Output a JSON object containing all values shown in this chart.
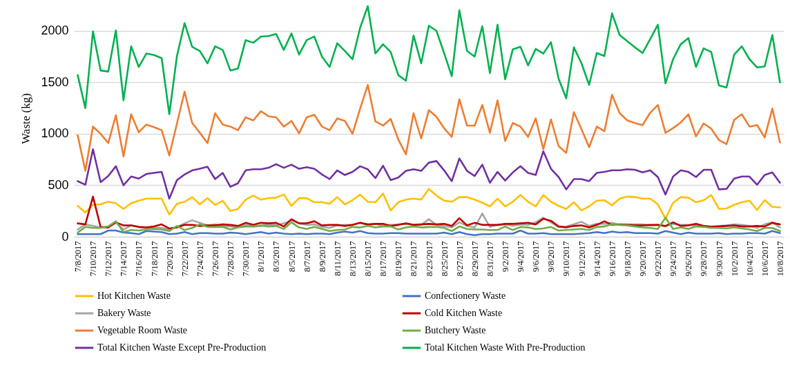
{
  "chart_data": {
    "type": "line",
    "ylabel": "Waste (kg)",
    "ylim": [
      0,
      2300
    ],
    "yticks": [
      0,
      500,
      1000,
      1500,
      2000
    ],
    "grid": "y",
    "legend": "bottom",
    "categories": [
      "7/8/2017",
      null,
      "7/10/2017",
      null,
      "7/12/2017",
      null,
      "7/14/2017",
      null,
      "7/16/2017",
      null,
      "7/18/2017",
      null,
      "7/20/2017",
      null,
      "7/22/2017",
      null,
      "7/24/2017",
      null,
      "7/26/2017",
      null,
      "7/28/2017",
      null,
      "7/30/2017",
      null,
      "8/1/2017",
      null,
      "8/3/2017",
      null,
      "8/5/2017",
      null,
      "8/7/2017",
      null,
      "8/9/2017",
      null,
      "8/11/2017",
      null,
      "8/13/2017",
      null,
      "8/15/2017",
      null,
      "8/17/2017",
      null,
      "8/19/2017",
      null,
      "8/21/2017",
      null,
      "8/23/2017",
      null,
      "8/25/2017",
      null,
      "8/27/2017",
      null,
      "8/29/2017",
      null,
      "8/31/2017",
      null,
      "9/2/2017",
      null,
      "9/4/2017",
      null,
      "9/6/2017",
      null,
      "9/8/2017",
      null,
      "9/10/2017",
      null,
      "9/12/2017",
      null,
      "9/14/2017",
      null,
      "9/16/2017",
      null,
      "9/18/2017",
      null,
      "9/20/2017",
      null,
      "9/22/2017",
      null,
      "9/24/2017",
      null,
      "9/26/2017",
      null,
      "9/28/2017",
      null,
      "9/30/2017",
      null,
      "10/2/2017",
      null,
      "10/4/2017",
      null,
      "10/6/2017",
      null,
      "10/8/2017"
    ],
    "series": [
      {
        "name": "Hot Kitchen Waste",
        "color": "#ffc000",
        "values": [
          300,
          235,
          310,
          315,
          340,
          325,
          270,
          325,
          350,
          370,
          370,
          370,
          215,
          320,
          340,
          385,
          315,
          375,
          310,
          350,
          250,
          270,
          360,
          400,
          360,
          375,
          380,
          410,
          300,
          375,
          375,
          335,
          335,
          320,
          385,
          315,
          355,
          410,
          340,
          335,
          420,
          255,
          335,
          360,
          370,
          360,
          465,
          400,
          350,
          340,
          385,
          385,
          360,
          330,
          295,
          370,
          295,
          340,
          405,
          340,
          295,
          405,
          340,
          300,
          270,
          335,
          255,
          295,
          350,
          355,
          305,
          370,
          390,
          385,
          370,
          370,
          315,
          175,
          330,
          385,
          380,
          335,
          355,
          405,
          270,
          275,
          310,
          335,
          350,
          260,
          355,
          290,
          285
        ]
      },
      {
        "name": "Confectionery Waste",
        "color": "#4472c4",
        "values": [
          25,
          25,
          25,
          25,
          60,
          60,
          40,
          35,
          25,
          55,
          50,
          45,
          25,
          30,
          45,
          25,
          35,
          35,
          30,
          30,
          40,
          35,
          25,
          35,
          45,
          30,
          40,
          30,
          25,
          30,
          25,
          30,
          30,
          25,
          40,
          50,
          40,
          55,
          35,
          30,
          30,
          35,
          35,
          30,
          30,
          30,
          30,
          30,
          40,
          25,
          45,
          25,
          15,
          25,
          25,
          30,
          30,
          30,
          60,
          30,
          30,
          35,
          25,
          25,
          25,
          25,
          30,
          35,
          45,
          35,
          50,
          40,
          45,
          35,
          35,
          35,
          30,
          55,
          40,
          25,
          40,
          30,
          30,
          30,
          35,
          25,
          30,
          30,
          35,
          35,
          30,
          55,
          35
        ]
      },
      {
        "name": "Bakery Waste",
        "color": "#a5a5a5",
        "values": [
          70,
          120,
          105,
          90,
          100,
          140,
          70,
          110,
          95,
          90,
          90,
          85,
          70,
          95,
          130,
          160,
          135,
          110,
          120,
          105,
          100,
          95,
          115,
          100,
          105,
          120,
          110,
          130,
          160,
          130,
          115,
          120,
          95,
          85,
          110,
          115,
          115,
          135,
          115,
          125,
          105,
          115,
          120,
          125,
          115,
          115,
          170,
          115,
          105,
          90,
          140,
          105,
          90,
          225,
          95,
          115,
          120,
          105,
          120,
          115,
          140,
          185,
          140,
          95,
          100,
          120,
          145,
          105,
          125,
          125,
          135,
          115,
          120,
          120,
          120,
          110,
          115,
          100,
          125,
          115,
          115,
          110,
          105,
          100,
          105,
          110,
          120,
          115,
          105,
          85,
          120,
          140,
          90
        ]
      },
      {
        "name": "Cold Kitchen Waste",
        "color": "#c00000",
        "values": [
          130,
          120,
          390,
          95,
          90,
          140,
          110,
          110,
          95,
          90,
          100,
          120,
          80,
          90,
          115,
          115,
          105,
          110,
          110,
          120,
          115,
          105,
          135,
          115,
          135,
          130,
          135,
          100,
          170,
          130,
          130,
          150,
          110,
          115,
          115,
          105,
          115,
          135,
          120,
          125,
          125,
          105,
          115,
          130,
          115,
          120,
          125,
          120,
          125,
          105,
          180,
          110,
          135,
          115,
          115,
          115,
          125,
          125,
          130,
          135,
          120,
          175,
          155,
          100,
          90,
          105,
          110,
          90,
          115,
          150,
          115,
          120,
          115,
          110,
          110,
          115,
          115,
          105,
          140,
          105,
          110,
          125,
          105,
          95,
          100,
          105,
          110,
          100,
          100,
          105,
          100,
          135,
          120
        ]
      },
      {
        "name": "Vegetable Room Waste",
        "color": "#ed7d31",
        "values": [
          985,
          640,
          1070,
          1000,
          910,
          1180,
          780,
          1190,
          1015,
          1090,
          1065,
          1035,
          790,
          1100,
          1410,
          1105,
          1010,
          910,
          1200,
          1090,
          1070,
          1035,
          1160,
          1130,
          1220,
          1170,
          1160,
          1070,
          1125,
          1005,
          1160,
          1185,
          1070,
          1035,
          1150,
          1125,
          1000,
          1245,
          1475,
          1120,
          1080,
          1145,
          945,
          800,
          1200,
          955,
          1230,
          1165,
          1055,
          970,
          1335,
          1080,
          1080,
          1280,
          1010,
          1325,
          930,
          1105,
          1070,
          970,
          1150,
          850,
          1140,
          880,
          815,
          1210,
          1045,
          870,
          1070,
          1025,
          1380,
          1200,
          1130,
          1105,
          1085,
          1205,
          1280,
          1010,
          1055,
          1110,
          1190,
          975,
          1100,
          1050,
          940,
          900,
          1135,
          1190,
          1070,
          1085,
          965,
          1245,
          915
        ]
      },
      {
        "name": "Butchery Waste",
        "color": "#70ad47",
        "values": [
          40,
          95,
          85,
          85,
          100,
          150,
          45,
          65,
          60,
          70,
          75,
          70,
          55,
          105,
          65,
          85,
          120,
          95,
          95,
          95,
          70,
          90,
          100,
          100,
          110,
          100,
          105,
          75,
          140,
          90,
          75,
          95,
          75,
          55,
          65,
          70,
          95,
          90,
          105,
          90,
          100,
          100,
          70,
          90,
          100,
          90,
          95,
          95,
          85,
          55,
          100,
          75,
          70,
          70,
          65,
          65,
          100,
          65,
          95,
          90,
          75,
          80,
          95,
          60,
          65,
          70,
          75,
          65,
          95,
          100,
          120,
          115,
          110,
          100,
          90,
          85,
          75,
          185,
          75,
          90,
          75,
          100,
          95,
          85,
          85,
          80,
          90,
          80,
          70,
          55,
          85,
          85,
          55
        ]
      },
      {
        "name": "Total Kitchen Waste Except Pre-Production",
        "color": "#7030a0",
        "values": [
          540,
          505,
          850,
          530,
          590,
          685,
          500,
          585,
          565,
          610,
          620,
          630,
          370,
          550,
          605,
          645,
          660,
          680,
          560,
          620,
          485,
          520,
          645,
          655,
          655,
          670,
          705,
          670,
          700,
          660,
          675,
          660,
          605,
          560,
          645,
          600,
          630,
          685,
          655,
          570,
          690,
          550,
          575,
          640,
          655,
          640,
          720,
          735,
          645,
          540,
          760,
          640,
          590,
          700,
          525,
          630,
          545,
          625,
          685,
          620,
          600,
          830,
          660,
          580,
          460,
          560,
          560,
          540,
          620,
          630,
          645,
          645,
          655,
          650,
          625,
          645,
          580,
          410,
          585,
          645,
          630,
          580,
          650,
          650,
          460,
          465,
          565,
          585,
          585,
          505,
          600,
          625,
          525
        ]
      },
      {
        "name": "Total Kitchen Waste With Pre-Production",
        "color": "#00b050",
        "values": [
          1570,
          1250,
          1995,
          1615,
          1605,
          2005,
          1325,
          1850,
          1650,
          1780,
          1765,
          1735,
          1190,
          1755,
          2075,
          1845,
          1805,
          1685,
          1850,
          1815,
          1615,
          1635,
          1910,
          1885,
          1945,
          1950,
          1970,
          1815,
          1975,
          1770,
          1910,
          1945,
          1750,
          1650,
          1880,
          1805,
          1725,
          2030,
          2240,
          1780,
          1870,
          1795,
          1570,
          1515,
          1955,
          1685,
          2050,
          2000,
          1785,
          1560,
          2200,
          1805,
          1750,
          2045,
          1590,
          2060,
          1530,
          1820,
          1845,
          1665,
          1825,
          1780,
          1890,
          1535,
          1345,
          1840,
          1685,
          1475,
          1785,
          1755,
          2170,
          1960,
          1900,
          1840,
          1785,
          1920,
          2060,
          1490,
          1725,
          1870,
          1930,
          1650,
          1830,
          1795,
          1470,
          1450,
          1770,
          1850,
          1725,
          1645,
          1655,
          1960,
          1500
        ]
      }
    ]
  }
}
